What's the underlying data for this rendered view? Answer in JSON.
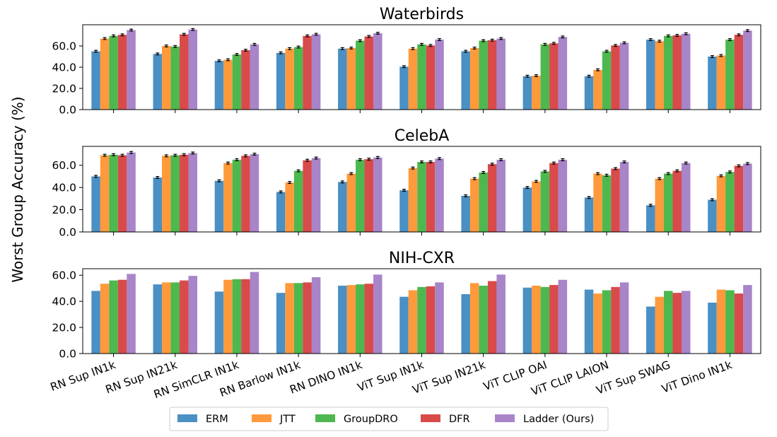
{
  "figure": {
    "ylabel": "Worst Group Accuracy (%)"
  },
  "legend": {
    "items": [
      {
        "label": "ERM",
        "color": "#4a90c4"
      },
      {
        "label": "JTT",
        "color": "#ff9a3c"
      },
      {
        "label": "GroupDRO",
        "color": "#4db84e"
      },
      {
        "label": "DFR",
        "color": "#d94a4a"
      },
      {
        "label": "Ladder (Ours)",
        "color": "#a884c9"
      }
    ]
  },
  "chart_data": [
    {
      "type": "bar",
      "title": "Waterbirds",
      "categories": [
        "RN Sup IN1k",
        "RN Sup IN21k",
        "RN SimCLR IN1k",
        "RN Barlow IN1k",
        "RN DINO IN1k",
        "ViT Sup IN1k",
        "ViT Sup IN21k",
        "ViT CLIP OAI",
        "ViT CLIP LAION",
        "ViT Sup SWAG",
        "ViT Dino IN1k"
      ],
      "yticks": [
        "0.0",
        "20.0",
        "40.0",
        "60.0"
      ],
      "ylim": [
        0,
        80
      ],
      "error_bars": true,
      "series": [
        {
          "name": "ERM",
          "values": [
            55,
            52.5,
            46,
            53.5,
            57.5,
            40.5,
            55,
            31.5,
            31.5,
            66,
            50
          ]
        },
        {
          "name": "JTT",
          "values": [
            67,
            60,
            47,
            57.5,
            58,
            57.5,
            58,
            32,
            37.5,
            64.5,
            51
          ]
        },
        {
          "name": "GroupDRO",
          "values": [
            69.5,
            59.5,
            52,
            59,
            65,
            61.5,
            65,
            61.5,
            55,
            69.5,
            66
          ]
        },
        {
          "name": "DFR",
          "values": [
            70.5,
            71,
            56,
            69.5,
            69,
            60.5,
            65.5,
            62.5,
            60.5,
            70,
            70.5
          ]
        },
        {
          "name": "Ladder (Ours)",
          "values": [
            75,
            75.5,
            61.5,
            71,
            72,
            66,
            67,
            68.5,
            63,
            71.5,
            74.5
          ]
        }
      ]
    },
    {
      "type": "bar",
      "title": "CelebA",
      "categories": [
        "RN Sup IN1k",
        "RN Sup IN21k",
        "RN SimCLR IN1k",
        "RN Barlow IN1k",
        "RN DINO IN1k",
        "ViT Sup IN1k",
        "ViT Sup IN21k",
        "ViT CLIP OAI",
        "ViT CLIP LAION",
        "ViT Sup SWAG",
        "ViT Dino IN1k"
      ],
      "yticks": [
        "0.0",
        "20.0",
        "40.0",
        "60.0"
      ],
      "ylim": [
        0,
        77
      ],
      "error_bars": true,
      "series": [
        {
          "name": "ERM",
          "values": [
            50,
            49,
            46,
            36,
            45,
            37.5,
            32.5,
            40,
            31,
            24,
            29
          ]
        },
        {
          "name": "JTT",
          "values": [
            69,
            68.5,
            62,
            44.5,
            52.5,
            57.5,
            48,
            45.5,
            52.5,
            48,
            50.5
          ]
        },
        {
          "name": "GroupDRO",
          "values": [
            69.5,
            69,
            65,
            55,
            65,
            63,
            53.5,
            54.5,
            51,
            52.5,
            54
          ]
        },
        {
          "name": "DFR",
          "values": [
            69,
            69.5,
            68.5,
            64.5,
            65.5,
            63,
            61,
            62,
            57,
            55,
            59.5
          ]
        },
        {
          "name": "Ladder (Ours)",
          "values": [
            71.5,
            71,
            70,
            66.5,
            67,
            66,
            65,
            65,
            63,
            62,
            61.5
          ]
        }
      ]
    },
    {
      "type": "bar",
      "title": "NIH-CXR",
      "categories": [
        "RN Sup IN1k",
        "RN Sup IN21k",
        "RN SimCLR IN1k",
        "RN Barlow IN1k",
        "RN DINO IN1k",
        "ViT Sup IN1k",
        "ViT Sup IN21k",
        "ViT CLIP OAI",
        "ViT CLIP LAION",
        "ViT Sup SWAG",
        "ViT Dino IN1k"
      ],
      "yticks": [
        "0.0",
        "20.0",
        "40.0",
        "60.0"
      ],
      "ylim": [
        0,
        65
      ],
      "error_bars": false,
      "series": [
        {
          "name": "ERM",
          "values": [
            48,
            53,
            47.5,
            46.5,
            52,
            43.5,
            45.5,
            50.5,
            49,
            36,
            39
          ]
        },
        {
          "name": "JTT",
          "values": [
            53.5,
            54.5,
            56.5,
            54,
            52.5,
            48.5,
            54,
            52,
            46,
            43.5,
            49
          ]
        },
        {
          "name": "GroupDRO",
          "values": [
            56,
            54.5,
            57,
            54,
            53,
            51,
            52,
            51,
            48.5,
            48,
            48.5
          ]
        },
        {
          "name": "DFR",
          "values": [
            56.5,
            56,
            57,
            54.5,
            53.5,
            51.5,
            55.5,
            52.5,
            51,
            46.5,
            46
          ]
        },
        {
          "name": "Ladder (Ours)",
          "values": [
            61,
            59.5,
            62.5,
            58.5,
            60.5,
            54.5,
            60.5,
            56.5,
            54.5,
            48,
            52.5
          ]
        }
      ]
    }
  ]
}
